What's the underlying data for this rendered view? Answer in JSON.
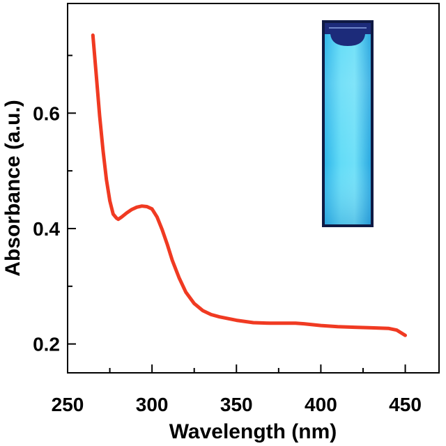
{
  "chart_data": {
    "type": "line",
    "title": "",
    "xlabel": "Wavelength (nm)",
    "ylabel": "Absorbance (a.u.)",
    "xlim": [
      250,
      470
    ],
    "ylim": [
      0.15,
      0.79
    ],
    "x_ticks": [
      250,
      300,
      350,
      400,
      450
    ],
    "x_tick_labels": [
      "250",
      "300",
      "350",
      "400",
      "450"
    ],
    "y_ticks": [
      0.2,
      0.4,
      0.6
    ],
    "y_tick_labels": [
      "0.2",
      "0.4",
      "0.6"
    ],
    "x_minor_ticks": [
      275,
      325,
      375,
      425
    ],
    "y_minor_ticks": [
      0.3,
      0.5,
      0.7
    ],
    "grid": false,
    "series": [
      {
        "color": "#f03a22",
        "x": [
          265,
          267,
          269,
          271,
          273,
          275,
          277,
          279,
          280,
          282,
          285,
          288,
          291,
          294,
          297,
          300,
          303,
          306,
          309,
          312,
          316,
          320,
          325,
          330,
          335,
          340,
          350,
          360,
          370,
          380,
          385,
          390,
          400,
          410,
          420,
          430,
          440,
          445,
          450
        ],
        "y": [
          0.735,
          0.665,
          0.595,
          0.535,
          0.485,
          0.448,
          0.425,
          0.418,
          0.416,
          0.42,
          0.427,
          0.433,
          0.437,
          0.439,
          0.438,
          0.434,
          0.42,
          0.398,
          0.373,
          0.345,
          0.315,
          0.29,
          0.27,
          0.258,
          0.251,
          0.247,
          0.241,
          0.237,
          0.236,
          0.236,
          0.236,
          0.235,
          0.232,
          0.23,
          0.229,
          0.228,
          0.227,
          0.224,
          0.215
        ]
      }
    ]
  },
  "inset": {
    "content": "photo of a cuvette showing blue fluorescence",
    "colors": {
      "glow": "#4fd2f5",
      "dark": "#1c2b7a",
      "frame": "#0f1a44"
    }
  }
}
